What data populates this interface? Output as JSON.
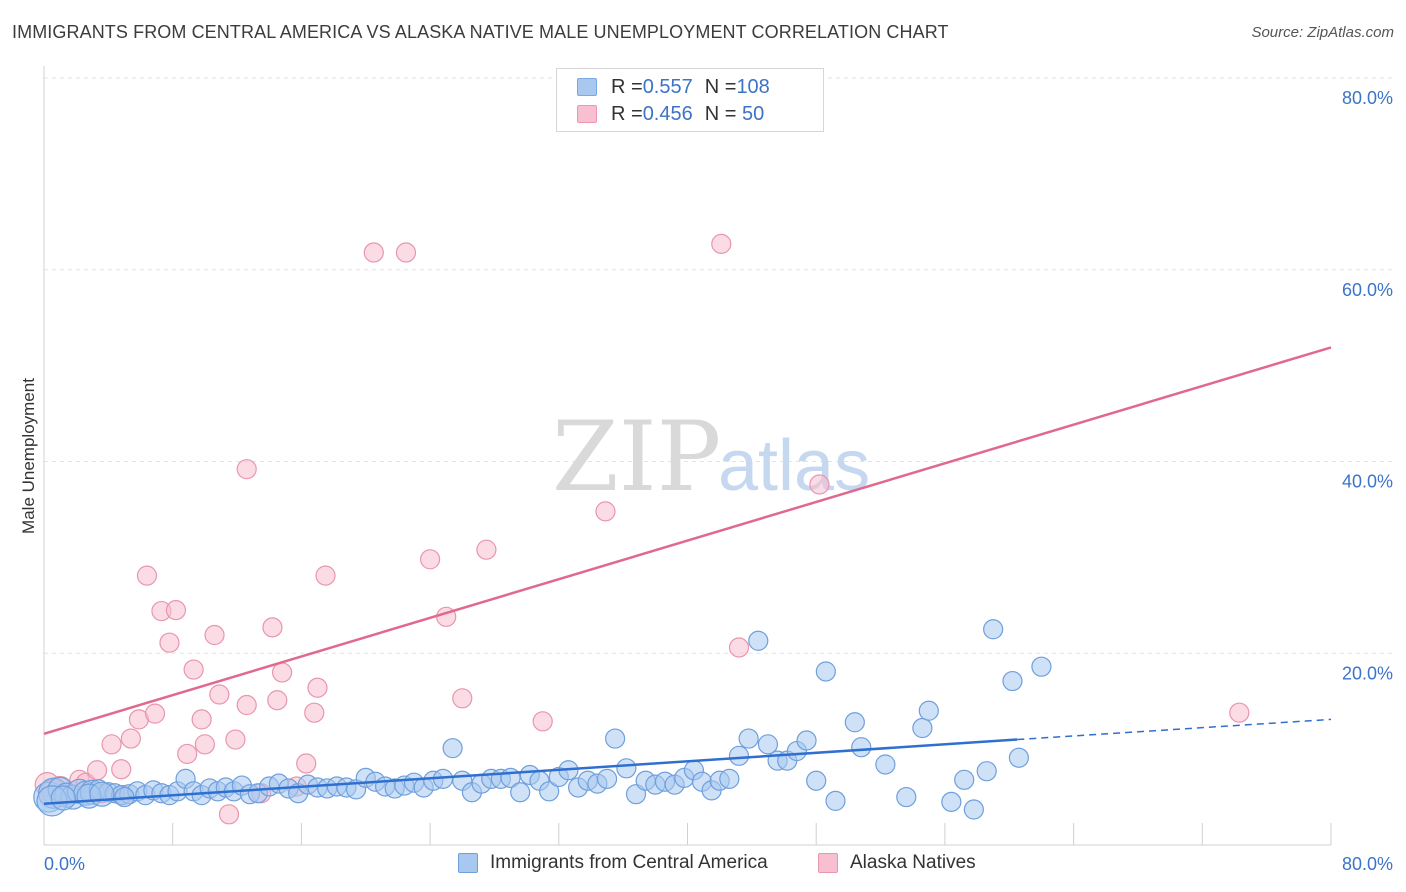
{
  "header": {
    "title": "IMMIGRANTS FROM CENTRAL AMERICA VS ALASKA NATIVE MALE UNEMPLOYMENT CORRELATION CHART",
    "source": "Source: ZipAtlas.com"
  },
  "watermark": {
    "part1": "ZIP",
    "part2": "atlas"
  },
  "stats_legend": [
    {
      "r_label": "R = ",
      "r_value": "0.557",
      "n_label": "N = ",
      "n_value": "108",
      "color": "#a8c8f0",
      "border": "#7aa8e0"
    },
    {
      "r_label": "R = ",
      "r_value": "0.456",
      "n_label": "N = ",
      "n_value": " 50",
      "color": "#f7bfd0",
      "border": "#ec98b4"
    }
  ],
  "colors": {
    "blue_fill": "#a8c8f0",
    "blue_stroke": "#6f9fdc",
    "blue_line": "#2f6fcf",
    "pink_fill": "#f7bfd0",
    "pink_stroke": "#e995b0",
    "pink_line": "#e0698f",
    "axis_label": "#3d73c7",
    "grid": "#e3e3e3"
  },
  "chart_data": {
    "type": "scatter",
    "title": "IMMIGRANTS FROM CENTRAL AMERICA VS ALASKA NATIVE MALE UNEMPLOYMENT CORRELATION CHART",
    "xlabel": "",
    "ylabel": "Male Unemployment",
    "xlim": [
      0,
      80
    ],
    "ylim": [
      0,
      80
    ],
    "x_tick_labels": [
      "0.0%",
      "80.0%"
    ],
    "y_ticks": [
      {
        "value": 20,
        "label": "20.0%"
      },
      {
        "value": 40,
        "label": "40.0%"
      },
      {
        "value": 60,
        "label": "60.0%"
      },
      {
        "value": 80,
        "label": "80.0%"
      }
    ],
    "grid": true,
    "legend_position": "bottom-center",
    "series": [
      {
        "name": "Immigrants from Central America",
        "color": "#a8c8f0",
        "r": 0.557,
        "n": 108,
        "trend": {
          "x0": 0,
          "y0": 4.3,
          "x1": 60.5,
          "y1": 11.0,
          "dashed_to_x": 80,
          "dashed_to_y": 13.1
        },
        "points": [
          [
            0.3,
            5.0,
            3
          ],
          [
            0.6,
            5.4,
            3
          ],
          [
            1.0,
            5.8,
            2
          ],
          [
            1.4,
            5.2,
            2
          ],
          [
            1.8,
            5.0,
            2
          ],
          [
            2.2,
            5.6,
            2
          ],
          [
            2.6,
            5.4,
            2
          ],
          [
            3.0,
            5.5,
            2
          ],
          [
            3.4,
            5.8,
            1
          ],
          [
            4.0,
            5.5,
            1
          ],
          [
            4.4,
            5.4,
            1
          ],
          [
            4.8,
            5.2,
            1
          ],
          [
            5.3,
            5.3,
            1
          ],
          [
            5.8,
            5.6,
            1
          ],
          [
            6.3,
            5.2,
            1
          ],
          [
            6.8,
            5.7,
            1
          ],
          [
            7.3,
            5.4,
            1
          ],
          [
            7.8,
            5.2,
            1
          ],
          [
            8.3,
            5.6,
            1
          ],
          [
            8.8,
            6.9,
            1
          ],
          [
            9.3,
            5.6,
            1
          ],
          [
            9.8,
            5.2,
            1
          ],
          [
            10.3,
            5.9,
            1
          ],
          [
            10.8,
            5.6,
            1
          ],
          [
            11.3,
            6.0,
            1
          ],
          [
            11.8,
            5.6,
            1
          ],
          [
            12.3,
            6.2,
            1
          ],
          [
            12.8,
            5.3,
            1
          ],
          [
            13.3,
            5.4,
            1
          ],
          [
            14.0,
            6.1,
            1
          ],
          [
            14.6,
            6.4,
            1
          ],
          [
            15.2,
            5.9,
            1
          ],
          [
            15.8,
            5.4,
            1
          ],
          [
            16.4,
            6.3,
            1
          ],
          [
            17.0,
            6.0,
            1
          ],
          [
            17.6,
            5.9,
            1
          ],
          [
            18.2,
            6.1,
            1
          ],
          [
            18.8,
            6.0,
            1
          ],
          [
            19.4,
            5.8,
            1
          ],
          [
            20.0,
            7.0,
            1
          ],
          [
            20.6,
            6.6,
            1
          ],
          [
            21.2,
            6.1,
            1
          ],
          [
            21.8,
            5.9,
            1
          ],
          [
            22.4,
            6.2,
            1
          ],
          [
            23.0,
            6.5,
            1
          ],
          [
            23.6,
            6.0,
            1
          ],
          [
            24.2,
            6.7,
            1
          ],
          [
            24.8,
            6.9,
            1
          ],
          [
            25.4,
            10.1,
            1
          ],
          [
            26.0,
            6.7,
            1
          ],
          [
            26.6,
            5.5,
            1
          ],
          [
            27.2,
            6.4,
            1
          ],
          [
            27.8,
            6.9,
            1
          ],
          [
            28.4,
            6.9,
            1
          ],
          [
            29.0,
            7.0,
            1
          ],
          [
            29.6,
            5.5,
            1
          ],
          [
            30.2,
            7.3,
            1
          ],
          [
            30.8,
            6.7,
            1
          ],
          [
            31.4,
            5.6,
            1
          ],
          [
            32.0,
            7.1,
            1
          ],
          [
            32.6,
            7.8,
            1
          ],
          [
            33.2,
            6.0,
            1
          ],
          [
            33.8,
            6.7,
            1
          ],
          [
            34.4,
            6.4,
            1
          ],
          [
            35.0,
            6.9,
            1
          ],
          [
            35.5,
            11.1,
            1
          ],
          [
            36.2,
            8.0,
            1
          ],
          [
            36.8,
            5.3,
            1
          ],
          [
            37.4,
            6.7,
            1
          ],
          [
            38.0,
            6.3,
            1
          ],
          [
            38.6,
            6.6,
            1
          ],
          [
            39.2,
            6.3,
            1
          ],
          [
            39.8,
            7.0,
            1
          ],
          [
            40.4,
            7.8,
            1
          ],
          [
            40.9,
            6.6,
            1
          ],
          [
            41.5,
            5.7,
            1
          ],
          [
            42.0,
            6.7,
            1
          ],
          [
            42.6,
            6.9,
            1
          ],
          [
            43.2,
            9.3,
            1
          ],
          [
            43.8,
            11.1,
            1
          ],
          [
            44.4,
            21.3,
            1
          ],
          [
            45.0,
            10.5,
            1
          ],
          [
            45.6,
            8.8,
            1
          ],
          [
            46.2,
            8.8,
            1
          ],
          [
            46.8,
            9.8,
            1
          ],
          [
            47.4,
            10.9,
            1
          ],
          [
            48.0,
            6.7,
            1
          ],
          [
            48.6,
            18.1,
            1
          ],
          [
            49.2,
            4.6,
            1
          ],
          [
            50.4,
            12.8,
            1
          ],
          [
            50.8,
            10.2,
            1
          ],
          [
            52.3,
            8.4,
            1
          ],
          [
            53.6,
            5.0,
            1
          ],
          [
            54.6,
            12.2,
            1
          ],
          [
            55.0,
            14.0,
            1
          ],
          [
            56.4,
            4.5,
            1
          ],
          [
            57.2,
            6.8,
            1
          ],
          [
            57.8,
            3.7,
            1
          ],
          [
            58.6,
            7.7,
            1
          ],
          [
            59.0,
            22.5,
            1
          ],
          [
            60.2,
            17.1,
            1
          ],
          [
            60.6,
            9.1,
            1
          ],
          [
            62.0,
            18.6,
            1
          ],
          [
            0.5,
            4.6,
            3
          ],
          [
            1.2,
            4.9,
            2
          ],
          [
            2.8,
            5.1,
            2
          ],
          [
            3.6,
            5.3,
            2
          ],
          [
            5.0,
            5.0,
            1
          ]
        ]
      },
      {
        "name": "Alaska Natives",
        "color": "#f7bfd0",
        "r": 0.456,
        "n": 50,
        "trend": {
          "x0": 0,
          "y0": 11.6,
          "x1": 80,
          "y1": 51.9
        },
        "points": [
          [
            0.2,
            6.3,
            2
          ],
          [
            0.6,
            5.6,
            2
          ],
          [
            1.2,
            5.0,
            1
          ],
          [
            1.8,
            5.6,
            1
          ],
          [
            2.2,
            6.8,
            1
          ],
          [
            2.6,
            6.5,
            1
          ],
          [
            3.3,
            7.8,
            1
          ],
          [
            3.6,
            5.4,
            1
          ],
          [
            4.2,
            10.5,
            1
          ],
          [
            4.8,
            7.9,
            1
          ],
          [
            4.9,
            5.2,
            1
          ],
          [
            5.4,
            11.1,
            1
          ],
          [
            5.9,
            13.1,
            1
          ],
          [
            6.4,
            28.1,
            1
          ],
          [
            6.9,
            13.7,
            1
          ],
          [
            7.3,
            24.4,
            1
          ],
          [
            7.8,
            21.1,
            1
          ],
          [
            8.2,
            24.5,
            1
          ],
          [
            8.9,
            9.5,
            1
          ],
          [
            9.3,
            18.3,
            1
          ],
          [
            9.8,
            13.1,
            1
          ],
          [
            10.0,
            10.5,
            1
          ],
          [
            10.6,
            21.9,
            1
          ],
          [
            10.9,
            15.7,
            1
          ],
          [
            11.5,
            3.2,
            1
          ],
          [
            11.9,
            11.0,
            1
          ],
          [
            12.6,
            39.2,
            1
          ],
          [
            12.6,
            14.6,
            1
          ],
          [
            13.5,
            5.4,
            1
          ],
          [
            14.2,
            22.7,
            1
          ],
          [
            14.5,
            15.1,
            1
          ],
          [
            14.8,
            18.0,
            1
          ],
          [
            15.7,
            6.1,
            1
          ],
          [
            16.3,
            8.5,
            1
          ],
          [
            16.8,
            13.8,
            1
          ],
          [
            17.0,
            16.4,
            1
          ],
          [
            17.5,
            28.1,
            1
          ],
          [
            20.5,
            61.8,
            1
          ],
          [
            22.5,
            61.8,
            1
          ],
          [
            24.0,
            29.8,
            1
          ],
          [
            25.0,
            23.8,
            1
          ],
          [
            26.0,
            15.3,
            1
          ],
          [
            27.5,
            30.8,
            1
          ],
          [
            31.0,
            12.9,
            1
          ],
          [
            34.9,
            34.8,
            1
          ],
          [
            42.1,
            62.7,
            1
          ],
          [
            43.2,
            20.6,
            1
          ],
          [
            48.2,
            37.6,
            1
          ],
          [
            74.3,
            13.8,
            1
          ],
          [
            1.0,
            5.9,
            2
          ]
        ]
      }
    ]
  }
}
